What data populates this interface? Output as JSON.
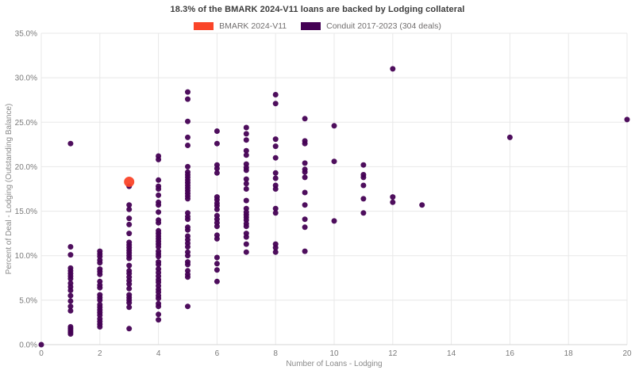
{
  "header": {
    "title": "18.3% of the BMARK 2024-V11 loans are backed by Lodging collateral"
  },
  "legend": {
    "items": [
      {
        "name": "bmark",
        "label": "BMARK 2024-V11",
        "color": "#fa4529"
      },
      {
        "name": "conduit",
        "label": "Conduit 2017-2023 (304 deals)",
        "color": "#440154"
      }
    ]
  },
  "chart_data": {
    "type": "scatter",
    "title": "18.3% of the BMARK 2024-V11 loans are backed by Lodging collateral",
    "xlabel": "Number of Loans - Lodging",
    "ylabel": "Percent of Deal - Lodging (Outstanding Balance)",
    "xlim": [
      0,
      20
    ],
    "ylim": [
      0,
      35
    ],
    "x_ticks": [
      0,
      2,
      4,
      6,
      8,
      10,
      12,
      14,
      16,
      18,
      20
    ],
    "y_ticks": [
      0,
      5,
      10,
      15,
      20,
      25,
      30,
      35
    ],
    "y_tick_format": "percent_one_decimal",
    "grid": true,
    "legend_position": "top-center",
    "background": "#ffffff",
    "gridline_color": "#e8e8e8",
    "series": [
      {
        "name": "Conduit 2017-2023 (304 deals)",
        "color": "#440154",
        "marker_diameter": 7,
        "columns": {
          "0": [
            0.0
          ],
          "1": [
            22.6,
            11.0,
            10.1,
            8.6,
            8.3,
            8.0,
            7.7,
            7.4,
            6.9,
            6.5,
            6.1,
            5.5,
            4.9,
            4.3,
            3.8,
            2.0,
            1.8,
            1.6,
            1.4,
            1.2
          ],
          "2": [
            10.5,
            10.2,
            9.9,
            9.5,
            9.2,
            8.5,
            8.2,
            7.9,
            7.1,
            6.7,
            6.4,
            5.6,
            5.3,
            5.0,
            4.5,
            4.2,
            3.9,
            3.6,
            3.3,
            2.9,
            2.6,
            2.3,
            2.0
          ],
          "3": [
            17.8,
            15.7,
            15.2,
            14.2,
            13.5,
            12.5,
            11.5,
            11.2,
            10.9,
            10.6,
            10.3,
            10.0,
            9.7,
            8.9,
            8.3,
            8.0,
            7.6,
            7.2,
            6.8,
            6.3,
            5.6,
            5.3,
            5.0,
            4.7,
            4.2,
            1.8
          ],
          "4": [
            21.2,
            20.8,
            18.5,
            17.8,
            17.5,
            16.8,
            16.0,
            15.7,
            14.9,
            14.0,
            13.7,
            12.8,
            12.5,
            12.2,
            11.9,
            11.6,
            11.3,
            11.0,
            10.5,
            10.2,
            9.9,
            9.3,
            9.0,
            8.5,
            8.1,
            7.7,
            7.3,
            7.0,
            6.6,
            6.2,
            5.9,
            5.5,
            5.2,
            4.6,
            4.3,
            3.4,
            2.8
          ],
          "5": [
            28.4,
            27.6,
            25.1,
            23.3,
            22.4,
            20.0,
            19.4,
            19.1,
            18.8,
            18.5,
            18.2,
            17.9,
            17.6,
            17.3,
            17.0,
            16.7,
            16.4,
            14.8,
            14.4,
            14.1,
            13.2,
            12.9,
            12.2,
            11.8,
            11.4,
            11.0,
            10.4,
            10.0,
            9.3,
            9.0,
            8.3,
            7.9,
            7.6,
            4.3
          ],
          "6": [
            24.0,
            22.6,
            20.2,
            19.8,
            19.3,
            16.6,
            16.3,
            15.9,
            15.6,
            15.2,
            14.5,
            14.1,
            13.7,
            13.3,
            12.3,
            11.9,
            9.8,
            9.1,
            8.4,
            7.1
          ],
          "7": [
            24.4,
            23.7,
            23.0,
            21.8,
            21.3,
            20.3,
            19.9,
            19.6,
            18.6,
            18.1,
            17.5,
            16.2,
            15.3,
            14.9,
            14.6,
            14.3,
            14.0,
            13.6,
            13.3,
            12.5,
            12.1,
            11.3,
            10.4
          ],
          "8": [
            28.1,
            27.1,
            23.1,
            22.3,
            21.0,
            19.3,
            18.7,
            17.9,
            17.5,
            15.3,
            14.8,
            11.3,
            10.9,
            10.4
          ],
          "9": [
            25.4,
            22.9,
            22.6,
            20.4,
            19.7,
            19.4,
            18.8,
            17.1,
            15.7,
            14.1,
            13.2,
            10.5
          ],
          "10": [
            24.6,
            20.6,
            13.9
          ],
          "11": [
            20.2,
            19.1,
            18.8,
            17.9,
            16.4,
            14.8
          ],
          "12": [
            31.0,
            16.6,
            16.0
          ],
          "13": [
            15.7
          ],
          "16": [
            23.3
          ],
          "20": [
            25.3
          ]
        }
      },
      {
        "name": "BMARK 2024-V11",
        "color": "#fa4529",
        "marker_diameter": 13,
        "points": [
          [
            3,
            18.3
          ]
        ]
      }
    ]
  }
}
